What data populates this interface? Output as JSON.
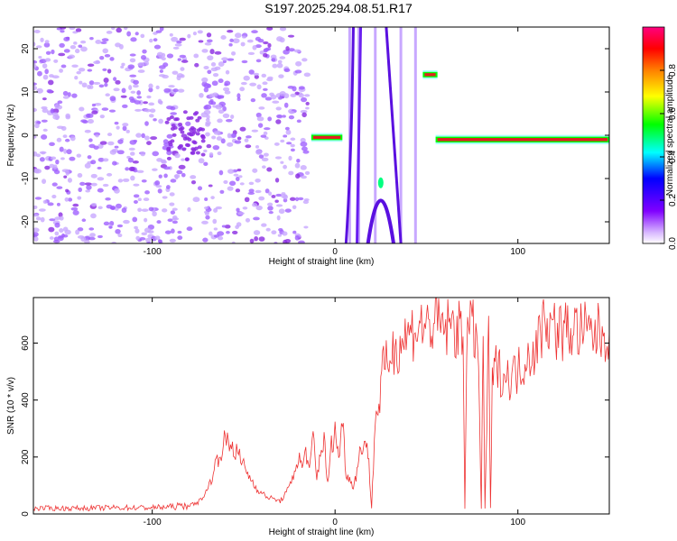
{
  "title": "S197.2025.294.08.51.R17",
  "colors": {
    "snr_line": "#ee3333",
    "dots": "#8a2be2",
    "dots_light": "#c8a8ff"
  },
  "chart_data": [
    {
      "type": "heatmap",
      "title": "S197.2025.294.08.51.R17",
      "xlabel": "Height of straight line (km)",
      "ylabel": "Frequency (Hz)",
      "xlim": [
        -165,
        150
      ],
      "ylim": [
        -25,
        25
      ],
      "xticks": [
        -100,
        0,
        100
      ],
      "xtick_labels": [
        "-100",
        "0",
        "100"
      ],
      "yticks": [
        -20,
        -10,
        0,
        10,
        20
      ],
      "ytick_labels": [
        "-20",
        "-10",
        "0",
        "10",
        "20"
      ],
      "colorbar": {
        "label": "Normalized spectral amplitude",
        "range": [
          0,
          1
        ],
        "ticks": [
          0.0,
          0.2,
          0.4,
          0.6,
          0.8
        ],
        "tick_labels": [
          "0.0",
          "0.2",
          "0.4",
          "0.6",
          "0.8"
        ],
        "colormap": [
          "#ffffff",
          "#8000ff",
          "#0000ff",
          "#00ffff",
          "#00ff00",
          "#ffff00",
          "#ff8000",
          "#ff0000",
          "#ff0080"
        ]
      },
      "features": [
        {
          "name": "noise-scatter",
          "x_range": [
            -165,
            -15
          ],
          "y_range": [
            -25,
            25
          ],
          "amplitude": 0.1
        },
        {
          "name": "signal-segment-1",
          "x_range": [
            -13,
            4
          ],
          "y": -0.5,
          "amplitude": 0.9
        },
        {
          "name": "arc-lines",
          "x_range": [
            4,
            48
          ],
          "y_range": [
            -25,
            25
          ],
          "amplitude": 0.15
        },
        {
          "name": "arc-peak",
          "x": 25,
          "y": -11,
          "amplitude": 0.6
        },
        {
          "name": "signal-segment-2",
          "x_range": [
            48,
            56
          ],
          "y": 14,
          "amplitude": 0.9
        },
        {
          "name": "signal-segment-3",
          "x_range": [
            55,
            150
          ],
          "y": -1,
          "amplitude": 0.95
        }
      ]
    },
    {
      "type": "line",
      "xlabel": "Height of straight line (km)",
      "ylabel": "SNR (10 * v/v)",
      "xlim": [
        -165,
        150
      ],
      "ylim": [
        0,
        760
      ],
      "xticks": [
        -100,
        0,
        100
      ],
      "xtick_labels": [
        "-100",
        "0",
        "100"
      ],
      "yticks": [
        0,
        200,
        400,
        600
      ],
      "ytick_labels": [
        "0",
        "200",
        "400",
        "600"
      ],
      "series": [
        {
          "x": [
            -165,
            -140,
            -120,
            -100,
            -90,
            -80,
            -75,
            -70,
            -65,
            -60,
            -55,
            -50,
            -45,
            -40,
            -35,
            -30,
            -25,
            -20,
            -18,
            -16,
            -14,
            -12,
            -10,
            -8,
            -6,
            -4,
            -2,
            0,
            2,
            4,
            6,
            8,
            10,
            12,
            14,
            16,
            18,
            20,
            22,
            24,
            26,
            28,
            30,
            35,
            40,
            45,
            50,
            55,
            60,
            65,
            70,
            71,
            72,
            74,
            76,
            78,
            80,
            81,
            82,
            84,
            85,
            86,
            88,
            90,
            95,
            100,
            105,
            110,
            113,
            115,
            117,
            120,
            125,
            130,
            140,
            150
          ],
          "y": [
            20,
            20,
            22,
            22,
            25,
            30,
            40,
            80,
            180,
            260,
            230,
            170,
            110,
            70,
            55,
            45,
            90,
            200,
            160,
            230,
            140,
            280,
            120,
            220,
            260,
            100,
            240,
            290,
            200,
            330,
            150,
            120,
            100,
            150,
            230,
            260,
            220,
            20,
            340,
            380,
            500,
            520,
            560,
            600,
            630,
            660,
            660,
            665,
            650,
            660,
            620,
            20,
            640,
            650,
            640,
            620,
            20,
            620,
            20,
            620,
            20,
            450,
            520,
            500,
            480,
            500,
            560,
            580,
            650,
            720,
            660,
            650,
            640,
            650,
            630,
            640
          ]
        }
      ]
    }
  ]
}
